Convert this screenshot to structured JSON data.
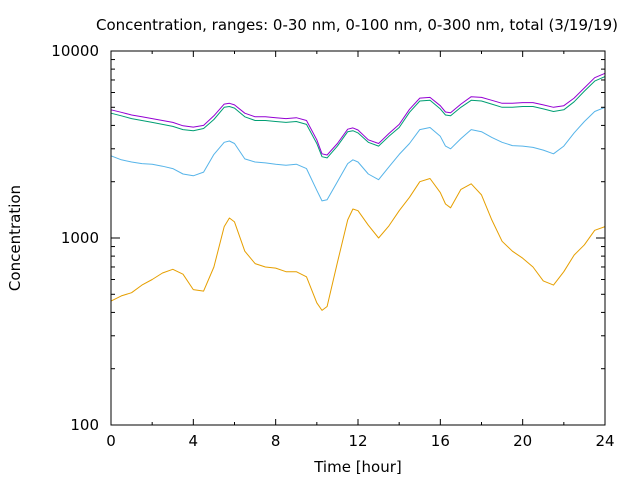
{
  "chart_data": {
    "type": "line",
    "title": "Concentration, ranges: 0-30 nm, 0-100 nm, 0-300 nm, total (3/19/19)",
    "xlabel": "Time [hour]",
    "ylabel": "Concentration",
    "xlim": [
      0,
      24
    ],
    "ylim": [
      100,
      10000
    ],
    "yscale": "log",
    "grid": false,
    "x_ticks": [
      0,
      4,
      8,
      12,
      16,
      20,
      24
    ],
    "x_tick_labels": [
      "0",
      "4",
      "8",
      "12",
      "16",
      "20",
      "24"
    ],
    "y_ticks": [
      100,
      1000,
      10000
    ],
    "y_tick_labels": [
      "100",
      "1000",
      "10000"
    ],
    "x": [
      0,
      0.5,
      1,
      1.5,
      2,
      2.5,
      3,
      3.5,
      4,
      4.5,
      5,
      5.5,
      5.75,
      6,
      6.5,
      7,
      7.5,
      8,
      8.5,
      9,
      9.5,
      10,
      10.25,
      10.5,
      11,
      11.5,
      11.75,
      12,
      12.5,
      13,
      13.5,
      14,
      14.5,
      15,
      15.5,
      16,
      16.25,
      16.5,
      17,
      17.5,
      18,
      18.5,
      19,
      19.5,
      20,
      20.5,
      21,
      21.5,
      22,
      22.5,
      23,
      23.5,
      24
    ],
    "series": [
      {
        "color": "#e69f00",
        "values": [
          460,
          490,
          510,
          560,
          600,
          650,
          680,
          640,
          530,
          520,
          700,
          1150,
          1280,
          1220,
          850,
          730,
          700,
          690,
          660,
          660,
          620,
          450,
          410,
          430,
          740,
          1250,
          1430,
          1400,
          1170,
          1000,
          1160,
          1400,
          1650,
          2000,
          2080,
          1750,
          1520,
          1450,
          1820,
          1950,
          1700,
          1250,
          960,
          850,
          780,
          700,
          590,
          560,
          660,
          810,
          920,
          1100,
          1150
        ]
      },
      {
        "color": "#56b4e9",
        "values": [
          2750,
          2620,
          2550,
          2500,
          2480,
          2420,
          2350,
          2200,
          2150,
          2250,
          2800,
          3250,
          3300,
          3200,
          2650,
          2550,
          2520,
          2480,
          2450,
          2480,
          2350,
          1800,
          1580,
          1600,
          2000,
          2500,
          2620,
          2550,
          2200,
          2050,
          2400,
          2800,
          3200,
          3800,
          3900,
          3500,
          3100,
          3000,
          3400,
          3800,
          3700,
          3450,
          3250,
          3120,
          3100,
          3050,
          2950,
          2820,
          3100,
          3650,
          4200,
          4750,
          5000
        ]
      },
      {
        "color": "#009e73",
        "values": [
          4650,
          4500,
          4350,
          4250,
          4150,
          4050,
          3950,
          3800,
          3750,
          3850,
          4300,
          5000,
          5050,
          4950,
          4450,
          4250,
          4250,
          4200,
          4150,
          4200,
          4050,
          3200,
          2720,
          2680,
          3100,
          3700,
          3750,
          3650,
          3250,
          3100,
          3500,
          3900,
          4700,
          5400,
          5450,
          4900,
          4550,
          4500,
          5000,
          5450,
          5400,
          5200,
          5000,
          5000,
          5050,
          5050,
          4900,
          4750,
          4850,
          5350,
          6100,
          6900,
          7300
        ]
      },
      {
        "color": "#9400d3",
        "values": [
          4850,
          4700,
          4550,
          4450,
          4350,
          4250,
          4150,
          3980,
          3920,
          4000,
          4500,
          5200,
          5250,
          5150,
          4650,
          4450,
          4450,
          4400,
          4350,
          4400,
          4250,
          3350,
          2820,
          2780,
          3200,
          3820,
          3880,
          3780,
          3350,
          3200,
          3620,
          4050,
          4880,
          5600,
          5650,
          5100,
          4720,
          4680,
          5200,
          5700,
          5650,
          5450,
          5250,
          5250,
          5300,
          5300,
          5150,
          5000,
          5100,
          5600,
          6350,
          7200,
          7600
        ]
      }
    ]
  }
}
